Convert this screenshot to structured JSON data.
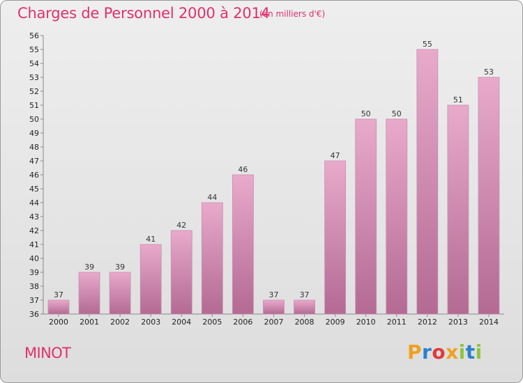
{
  "header": {
    "title": "Charges de Personnel 2000 à 2014",
    "subtitle": "(en milliers d'€)"
  },
  "footer": {
    "commune": "MINOT",
    "brand": [
      "P",
      "r",
      "o",
      "x",
      "i",
      "t",
      "i"
    ],
    "brand_colors": [
      "#f0a020",
      "#2a7fd0",
      "#e03a3a",
      "#f0a020",
      "#8cc63e",
      "#2a7fd0",
      "#8cc63e"
    ]
  },
  "chart_data": {
    "type": "bar",
    "title": "Charges de Personnel 2000 à 2014",
    "subtitle": "(en milliers d'€)",
    "categories": [
      "2000",
      "2001",
      "2002",
      "2003",
      "2004",
      "2005",
      "2006",
      "2007",
      "2008",
      "2009",
      "2010",
      "2011",
      "2012",
      "2013",
      "2014"
    ],
    "values": [
      37,
      39,
      39,
      41,
      42,
      44,
      46,
      37,
      37,
      47,
      50,
      50,
      55,
      51,
      53
    ],
    "ylim": [
      36,
      56
    ],
    "yticks": [
      36,
      37,
      38,
      39,
      40,
      41,
      42,
      43,
      44,
      45,
      46,
      47,
      48,
      49,
      50,
      51,
      52,
      53,
      54,
      55,
      56
    ],
    "xlabel": "",
    "ylabel": "",
    "grid": false,
    "bar_color": "#c87aa0",
    "bar_color_top": "#e6a9c7",
    "data_labels": true
  }
}
